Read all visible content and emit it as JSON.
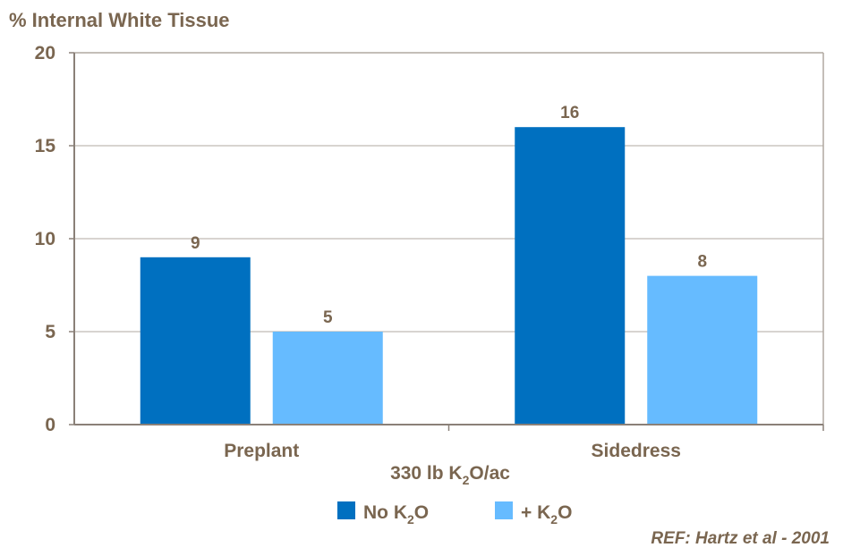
{
  "chart_data": {
    "type": "bar",
    "title": "% Internal White Tissue",
    "xlabel": "330 lb K2O/ac",
    "xlabel_parts": [
      "330 lb K",
      "2",
      "O/ac"
    ],
    "ylabel": "",
    "categories": [
      "Preplant",
      "Sidedress"
    ],
    "series": [
      {
        "name": "No K2O",
        "legend_parts": [
          "No K",
          "2",
          "O"
        ],
        "values": [
          9,
          16
        ],
        "color": "#0070c0"
      },
      {
        "name": "+ K2O",
        "legend_parts": [
          "+ K",
          "2",
          "O"
        ],
        "values": [
          5,
          8
        ],
        "color": "#66bbff"
      }
    ],
    "ylim": [
      0,
      20
    ],
    "yticks": [
      0,
      5,
      10,
      15,
      20
    ],
    "grid": true,
    "legend_placement": "bottom",
    "reference": "REF: Hartz et al - 2001",
    "text_color": "#7a6650",
    "grid_color": "#b0a8a0"
  }
}
